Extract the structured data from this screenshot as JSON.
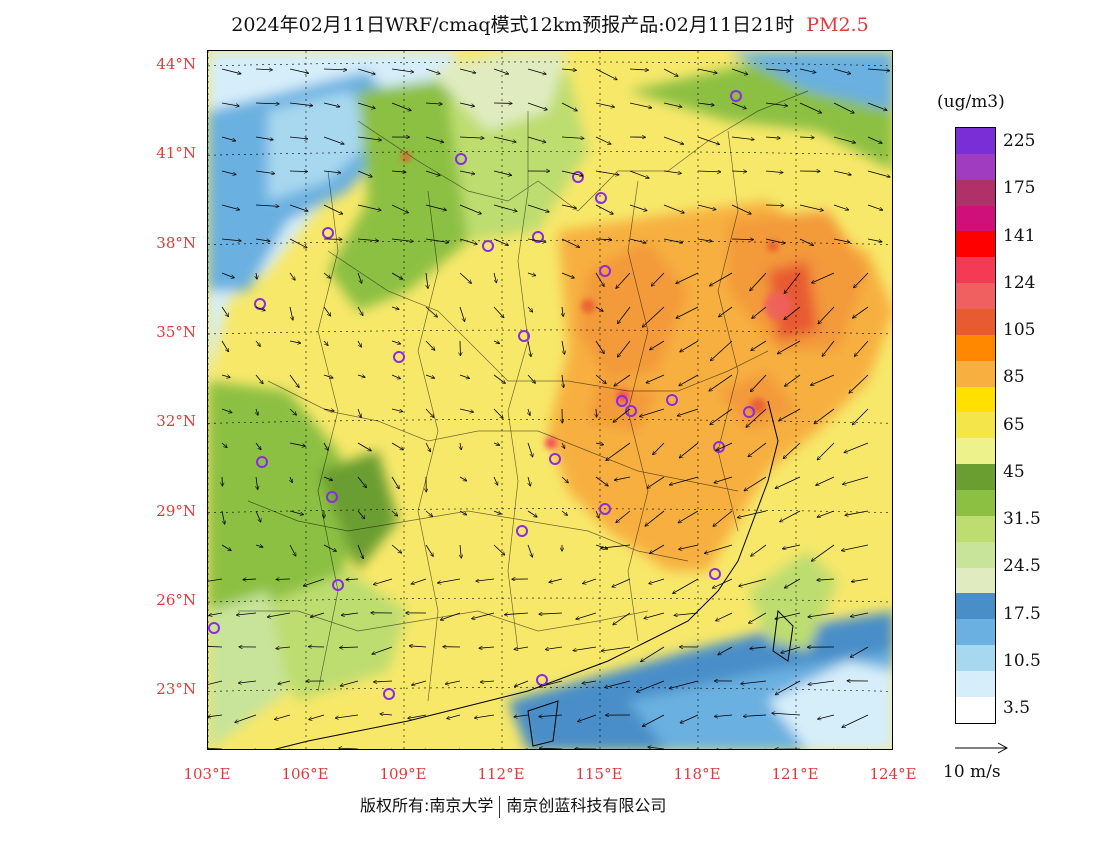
{
  "header": {
    "title": "2024年02月11日WRF/cmaq模式12km预报产品:02月11日21时",
    "pollutant": "PM2.5"
  },
  "map": {
    "lat_labels": [
      "44°N",
      "41°N",
      "38°N",
      "35°N",
      "32°N",
      "29°N",
      "26°N",
      "23°N"
    ],
    "lon_labels": [
      "103°E",
      "106°E",
      "109°E",
      "112°E",
      "115°E",
      "118°E",
      "121°E",
      "124°E"
    ],
    "lat_range": [
      21,
      44.5
    ],
    "lon_range": [
      103,
      124
    ]
  },
  "legend": {
    "unit": "(ug/m3)",
    "labels": [
      "225",
      "175",
      "141",
      "124",
      "105",
      "85",
      "65",
      "45",
      "31.5",
      "24.5",
      "17.5",
      "10.5",
      "3.5"
    ],
    "colors": [
      "#7a2fd6",
      "#a03cc0",
      "#b0306a",
      "#d0107a",
      "#ff0000",
      "#f43a55",
      "#f06060",
      "#e85a30",
      "#ff8800",
      "#f7b040",
      "#ffe000",
      "#f4e64a",
      "#eef28a",
      "#6a9e30",
      "#8cc042",
      "#bedd70",
      "#c8e49a",
      "#e0ecc0",
      "#4a8ec8",
      "#6ab0e0",
      "#a8d8f0",
      "#d6eefa",
      "#ffffff"
    ]
  },
  "wind_reference": {
    "label": "10 m/s"
  },
  "footer": {
    "copyright_left": "版权所有:南京大学",
    "copyright_right": "南京创蓝科技有限公司"
  }
}
